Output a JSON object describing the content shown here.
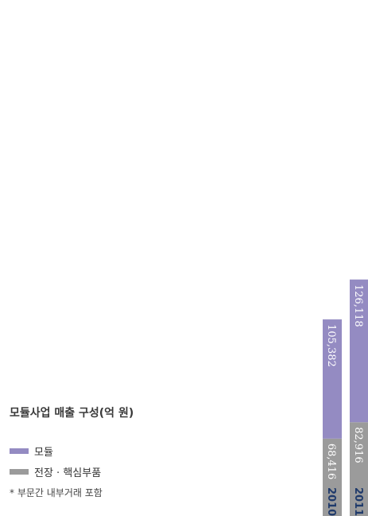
{
  "chart_data": {
    "type": "bar",
    "stacked": true,
    "orientation": "vertical-rotated",
    "title": "모듈사업 매출 구성(억 원)",
    "categories": [
      "2010",
      "2011"
    ],
    "series": [
      {
        "name": "전장 · 핵심부품",
        "values": [
          68416,
          82916
        ],
        "color": "#9b9b9b"
      },
      {
        "name": "모듈",
        "values": [
          105382,
          126118
        ],
        "color": "#948bc2"
      }
    ],
    "value_labels": {
      "2010": [
        "68,416",
        "105,382"
      ],
      "2011": [
        "82,916",
        "126,118"
      ]
    },
    "note": "* 부문간 내부거래 포함",
    "legend_placement": "bottom-left",
    "grid": false
  },
  "legend": [
    {
      "label": "모듈",
      "color": "#948bc2"
    },
    {
      "label": "전장 · 핵심부품",
      "color": "#9b9b9b"
    }
  ]
}
